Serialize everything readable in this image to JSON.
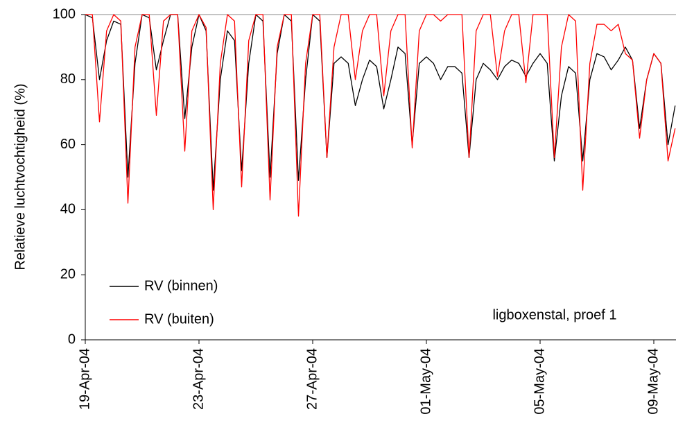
{
  "chart_data": {
    "type": "line",
    "y_label": "Relatieve luchtvochtigheid (%)",
    "annotation": "ligboxenstal, proef 1",
    "categories": [
      "19-Apr-04",
      null,
      null,
      null,
      null,
      null,
      null,
      null,
      null,
      null,
      null,
      null,
      null,
      null,
      null,
      null,
      "23-Apr-04",
      null,
      null,
      null,
      null,
      null,
      null,
      null,
      null,
      null,
      null,
      null,
      null,
      null,
      null,
      null,
      "27-Apr-04",
      null,
      null,
      null,
      null,
      null,
      null,
      null,
      null,
      null,
      null,
      null,
      null,
      null,
      null,
      null,
      "01-May-04",
      null,
      null,
      null,
      null,
      null,
      null,
      null,
      null,
      null,
      null,
      null,
      null,
      null,
      null,
      null,
      "05-May-04",
      null,
      null,
      null,
      null,
      null,
      null,
      null,
      null,
      null,
      null,
      null,
      null,
      null,
      null,
      null,
      "09-May-04",
      null,
      null,
      null
    ],
    "series": [
      {
        "name": "RV (binnen)",
        "color": "#000000",
        "values": [
          100,
          99,
          80,
          92,
          98,
          97,
          50,
          85,
          100,
          99,
          83,
          92,
          100,
          100,
          68,
          90,
          100,
          95,
          46,
          80,
          95,
          92,
          52,
          85,
          100,
          98,
          50,
          88,
          100,
          98,
          49,
          80,
          100,
          98,
          56,
          85,
          87,
          85,
          72,
          80,
          86,
          84,
          71,
          80,
          90,
          88,
          60,
          85,
          87,
          85,
          80,
          84,
          84,
          82,
          56,
          80,
          85,
          83,
          80,
          84,
          86,
          85,
          81,
          85,
          88,
          85,
          55,
          75,
          84,
          82,
          55,
          80,
          88,
          87,
          83,
          86,
          90,
          86,
          65,
          80,
          88,
          85,
          60,
          72
        ]
      },
      {
        "name": "RV (buiten)",
        "color": "#ff0000",
        "values": [
          100,
          100,
          67,
          95,
          100,
          98,
          42,
          90,
          100,
          100,
          69,
          98,
          100,
          100,
          58,
          95,
          100,
          96,
          40,
          85,
          100,
          98,
          47,
          92,
          100,
          100,
          43,
          90,
          100,
          100,
          38,
          85,
          100,
          100,
          56,
          90,
          100,
          100,
          80,
          95,
          100,
          100,
          75,
          95,
          100,
          100,
          59,
          95,
          100,
          100,
          98,
          100,
          100,
          100,
          56,
          95,
          100,
          100,
          81,
          95,
          100,
          100,
          79,
          100,
          100,
          100,
          56,
          90,
          100,
          98,
          46,
          85,
          97,
          97,
          95,
          97,
          88,
          86,
          62,
          80,
          88,
          85,
          55,
          65
        ]
      }
    ],
    "ylim": [
      0,
      100
    ],
    "yticks": [
      0,
      20,
      40,
      60,
      80,
      100
    ],
    "grid": false,
    "legend": "lower-left"
  }
}
